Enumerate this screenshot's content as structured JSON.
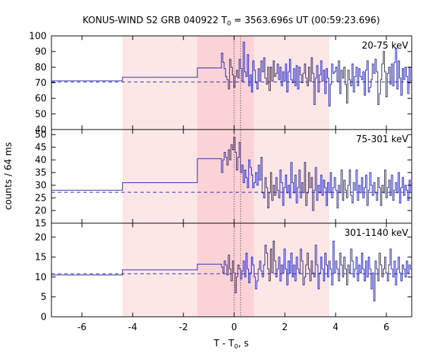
{
  "chart_data": {
    "type": "line",
    "title": "KONUS-WIND S2 GRB 040922 T",
    "title_sub": "0",
    "title_rest": " = 3563.696s UT (00:59:23.696)",
    "xlabel": "T - T",
    "xlabel_sub": "0",
    "xlabel_rest": ", s",
    "ylabel": "counts / 64 ms",
    "xlim": [
      -7.2,
      7.0
    ],
    "x_ticks": [
      -6,
      -4,
      -2,
      0,
      2,
      4,
      6
    ],
    "x_tick_labels": [
      "-6",
      "-4",
      "-2",
      "0",
      "2",
      "4",
      "6"
    ],
    "colors": {
      "line": "#2b2bb0",
      "shade_outer": "#fde6e6",
      "shade_inner": "#fbd3d6",
      "vlines": "#884466",
      "frame": "#000000"
    },
    "shaded_outer": [
      -4.4,
      3.75
    ],
    "shaded_inner": [
      -1.45,
      0.78
    ],
    "vlines": [
      0.0,
      0.256
    ],
    "panels": [
      {
        "label": "20-75 keV",
        "ylim": [
          40,
          100
        ],
        "y_ticks": [
          40,
          50,
          60,
          70,
          80,
          90,
          100
        ],
        "y_tick_labels": [
          "40",
          "50",
          "60",
          "70",
          "80",
          "90",
          "100"
        ],
        "background": 70.5,
        "steps": [
          {
            "x": -7.2,
            "y": 71.2
          },
          {
            "x": -4.4,
            "y": 73.5
          },
          {
            "x": -1.45,
            "y": 79.5
          },
          {
            "x": -0.5,
            "y": 89
          }
        ],
        "fine": [
          89,
          83,
          79,
          74,
          72,
          66,
          85,
          80,
          75,
          67,
          74,
          78,
          73,
          85,
          79,
          71,
          96,
          77,
          74,
          88,
          68,
          75,
          64,
          84,
          78,
          70,
          66,
          79,
          71,
          84,
          77,
          86,
          73,
          69,
          80,
          65,
          80,
          71,
          84,
          74,
          76,
          82,
          72,
          80,
          68,
          77,
          71,
          82,
          64,
          77,
          85,
          72,
          70,
          79,
          68,
          81,
          66,
          80,
          75,
          70,
          76,
          82,
          73,
          68,
          80,
          71,
          86,
          76,
          56,
          73,
          81,
          64,
          75,
          84,
          71,
          78,
          63,
          79,
          73,
          55,
          69,
          82,
          76,
          77,
          80,
          71,
          84,
          63,
          78,
          73,
          80,
          69,
          57,
          78,
          72,
          68,
          82,
          64,
          74,
          80,
          68,
          79,
          74,
          72,
          77,
          62,
          78,
          84,
          64,
          67,
          72,
          82,
          76,
          85,
          77,
          56,
          63,
          72,
          82,
          90,
          77,
          61,
          76,
          80,
          69,
          82,
          68,
          83,
          92,
          66,
          84,
          73,
          62,
          79,
          72,
          80,
          74,
          63,
          80,
          71
        ]
      },
      {
        "label": "75-301 keV",
        "ylim": [
          15,
          52
        ],
        "y_ticks": [
          15,
          20,
          25,
          30,
          35,
          40,
          45,
          50
        ],
        "y_tick_labels": [
          "15",
          "20",
          "25",
          "30",
          "35",
          "40",
          "45",
          "50"
        ],
        "background": 27.2,
        "steps": [
          {
            "x": -7.2,
            "y": 28
          },
          {
            "x": -4.4,
            "y": 31
          },
          {
            "x": -1.45,
            "y": 40.5
          },
          {
            "x": -0.5,
            "y": 35
          }
        ],
        "fine": [
          35,
          40,
          43,
          41,
          38,
          44,
          40,
          46,
          44,
          49,
          43,
          36,
          41,
          47,
          35,
          38,
          31,
          36,
          33,
          29,
          40,
          37,
          34,
          29,
          31,
          35,
          30,
          38,
          32,
          41,
          27,
          25,
          33,
          29,
          21,
          27,
          35,
          24,
          30,
          26,
          33,
          28,
          25,
          36,
          31,
          22,
          29,
          34,
          27,
          30,
          25,
          39,
          31,
          27,
          34,
          23,
          29,
          36,
          25,
          31,
          27,
          39,
          22,
          27,
          35,
          29,
          33,
          20,
          28,
          37,
          24,
          30,
          27,
          34,
          26,
          32,
          29,
          22,
          31,
          27,
          35,
          25,
          29,
          33,
          28,
          21,
          30,
          27,
          36,
          24,
          32,
          28,
          25,
          30,
          36,
          26,
          23,
          31,
          28,
          36,
          24,
          30,
          27,
          33,
          25,
          29,
          34,
          22,
          28,
          35,
          30,
          26,
          31,
          27,
          24,
          33,
          29,
          22,
          30,
          27,
          36,
          25,
          29,
          32,
          26,
          34,
          24,
          28,
          31,
          27,
          35,
          23,
          29,
          33,
          26,
          30,
          28,
          24,
          32,
          27
        ]
      },
      {
        "label": "301-1140 keV",
        "ylim": [
          0,
          23.5
        ],
        "y_ticks": [
          0,
          5,
          10,
          15,
          20
        ],
        "y_tick_labels": [
          "0",
          "5",
          "10",
          "15",
          "20"
        ],
        "background": 10.8,
        "steps": [
          {
            "x": -7.2,
            "y": 10.5
          },
          {
            "x": -4.4,
            "y": 11.8
          },
          {
            "x": -1.45,
            "y": 13.2
          },
          {
            "x": -0.5,
            "y": 12.5
          }
        ],
        "fine": [
          12.5,
          11,
          14,
          13,
          10.5,
          15.5,
          12,
          9,
          14,
          11,
          6,
          10,
          13,
          12,
          9.5,
          11.5,
          14,
          10,
          16,
          12,
          8.5,
          11,
          15,
          13,
          10,
          7,
          9,
          12,
          14,
          11.5,
          10,
          13,
          18,
          16,
          12,
          9,
          17,
          11,
          19,
          14,
          10,
          12,
          15,
          9,
          13,
          11,
          17,
          12,
          8,
          14,
          11,
          16,
          10,
          13,
          9,
          15,
          12,
          11,
          17,
          14,
          8,
          10,
          13,
          16,
          12,
          9,
          14,
          11,
          10,
          18,
          13,
          7,
          11,
          15,
          12,
          9,
          16,
          13,
          10,
          14,
          12,
          8,
          19,
          11,
          14,
          12,
          9,
          16,
          13,
          10,
          15,
          12,
          8,
          13,
          11,
          17,
          14,
          10,
          12,
          15,
          9,
          13,
          11,
          16,
          12,
          9,
          14,
          10,
          15,
          12,
          7,
          11,
          4,
          14,
          12,
          9,
          16,
          13,
          10,
          12,
          15,
          11,
          9,
          13,
          17,
          12,
          10,
          14,
          8,
          12,
          15,
          11,
          9,
          13,
          12,
          10,
          14,
          11,
          13,
          12
        ]
      }
    ]
  }
}
